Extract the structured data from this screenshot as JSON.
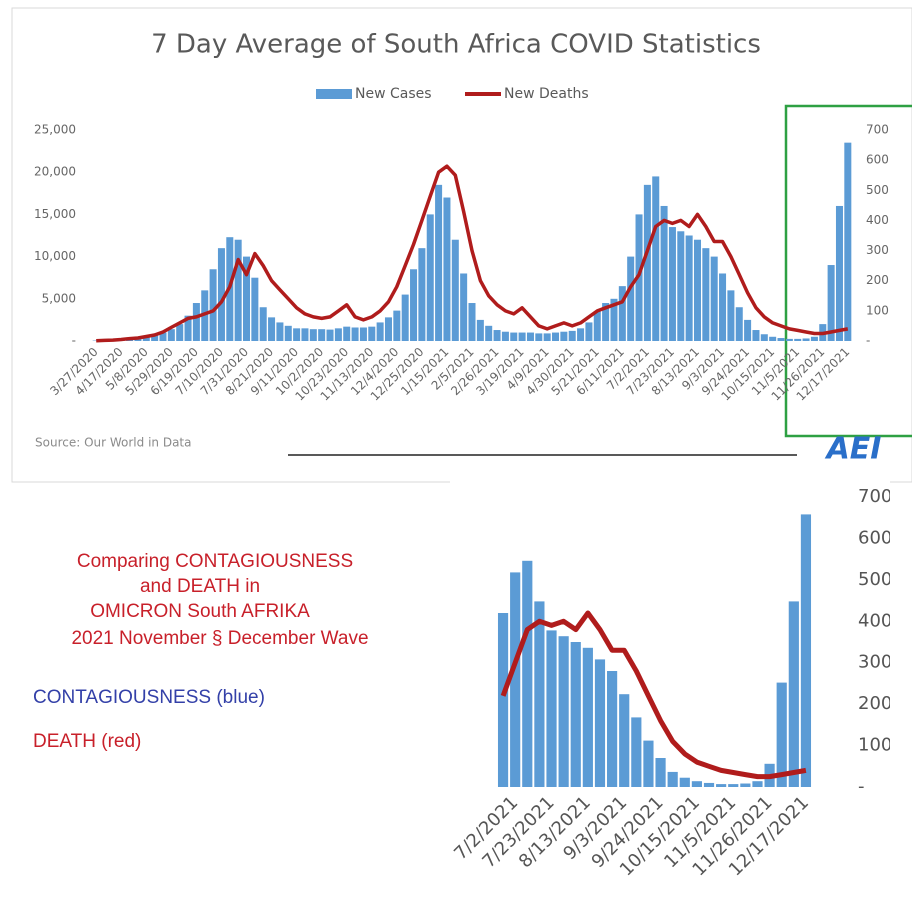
{
  "chart_data": [
    {
      "type": "bar",
      "title": "7 Day Average of South Africa COVID Statistics",
      "source": "Source: Our World in Data",
      "logo": "AEI",
      "categories": [
        "3/27/2020",
        null,
        null,
        "4/17/2020",
        null,
        null,
        "5/8/2020",
        null,
        null,
        "5/29/2020",
        null,
        null,
        "6/19/2020",
        null,
        null,
        "7/10/2020",
        null,
        null,
        "7/31/2020",
        null,
        null,
        "8/21/2020",
        null,
        null,
        "9/11/2020",
        null,
        null,
        "10/2/2020",
        null,
        null,
        "10/23/2020",
        null,
        null,
        "11/13/2020",
        null,
        null,
        "12/4/2020",
        null,
        null,
        "12/25/2020",
        null,
        null,
        "1/15/2021",
        null,
        null,
        "2/5/2021",
        null,
        null,
        "2/26/2021",
        null,
        null,
        "3/19/2021",
        null,
        null,
        "4/9/2021",
        null,
        null,
        "4/30/2021",
        null,
        null,
        "5/21/2021",
        null,
        null,
        "6/11/2021",
        null,
        null,
        "7/2/2021",
        null,
        null,
        "7/23/2021",
        null,
        null,
        "8/13/2021",
        null,
        null,
        "9/3/2021",
        null,
        null,
        "9/24/2021",
        null,
        null,
        "10/15/2021",
        null,
        null,
        "11/5/2021",
        null,
        null,
        "11/26/2021",
        null,
        null,
        "12/17/2021"
      ],
      "series": [
        {
          "name": "New Cases",
          "type": "bar",
          "color": "#5b9bd5",
          "values": [
            50,
            60,
            80,
            120,
            200,
            300,
            500,
            700,
            1000,
            1400,
            2000,
            3000,
            4500,
            6000,
            8500,
            11000,
            12300,
            12000,
            10000,
            7500,
            4000,
            2800,
            2200,
            1800,
            1500,
            1500,
            1400,
            1400,
            1350,
            1500,
            1700,
            1600,
            1600,
            1700,
            2200,
            2800,
            3600,
            5500,
            8500,
            11000,
            15000,
            18500,
            17000,
            12000,
            8000,
            4500,
            2500,
            1800,
            1300,
            1100,
            1000,
            1000,
            1000,
            900,
            900,
            1000,
            1100,
            1200,
            1500,
            2200,
            3500,
            4500,
            5000,
            6500,
            10000,
            15000,
            18500,
            19500,
            16000,
            13500,
            13000,
            12500,
            12000,
            11000,
            10000,
            8000,
            6000,
            4000,
            2500,
            1300,
            800,
            500,
            350,
            250,
            250,
            300,
            500,
            2000,
            9000,
            16000,
            23500
          ]
        },
        {
          "name": "New Deaths",
          "type": "line",
          "axis": "y2",
          "color": "#b01c1c",
          "values": [
            1,
            2,
            3,
            5,
            8,
            10,
            15,
            20,
            30,
            45,
            60,
            75,
            80,
            90,
            100,
            130,
            180,
            270,
            220,
            290,
            250,
            200,
            170,
            140,
            110,
            90,
            80,
            75,
            80,
            100,
            120,
            80,
            70,
            80,
            100,
            130,
            180,
            250,
            320,
            400,
            480,
            560,
            580,
            550,
            430,
            300,
            200,
            150,
            120,
            100,
            90,
            110,
            80,
            50,
            40,
            50,
            60,
            50,
            60,
            80,
            100,
            110,
            120,
            130,
            180,
            220,
            300,
            380,
            400,
            390,
            400,
            380,
            420,
            380,
            330,
            330,
            280,
            220,
            160,
            110,
            80,
            60,
            50,
            40,
            35,
            30,
            25,
            25,
            30,
            35,
            40
          ]
        }
      ],
      "ylim": [
        0,
        25000
      ],
      "yticks": [
        {
          "value": 25000,
          "label": "25,000"
        },
        {
          "value": 20000,
          "label": "20,000"
        },
        {
          "value": 15000,
          "label": "15,000"
        },
        {
          "value": 10000,
          "label": "10,000"
        },
        {
          "value": 5000,
          "label": "5,000"
        },
        {
          "value": 0,
          "label": "-"
        }
      ],
      "y2lim": [
        0,
        700
      ],
      "y2ticks": [
        700,
        600,
        500,
        400,
        300,
        200,
        100,
        {
          "value": 0,
          "label": "-"
        }
      ],
      "grid": false,
      "legend": "top"
    },
    {
      "type": "bar",
      "annotations": [
        "Comparing CONTAGIOUSNESS",
        "and DEATH in",
        "OMICRON South AFRIKA",
        "2021 November § December Wave",
        "CONTAGIOUSNESS (blue)",
        "DEATH (red)"
      ],
      "categories": [
        null,
        "7/2/2021",
        null,
        null,
        "7/23/2021",
        null,
        null,
        "8/13/2021",
        null,
        null,
        "9/3/2021",
        null,
        null,
        "9/24/2021",
        null,
        null,
        "10/15/2021",
        null,
        null,
        "11/5/2021",
        null,
        null,
        "11/26/2021",
        null,
        null,
        "12/17/2021"
      ],
      "series": [
        {
          "type": "bar",
          "color": "#5b9bd5",
          "values": [
            15000,
            18500,
            19500,
            16000,
            13500,
            13000,
            12500,
            12000,
            11000,
            10000,
            8000,
            6000,
            4000,
            2500,
            1300,
            800,
            500,
            350,
            250,
            250,
            300,
            500,
            2000,
            9000,
            16000,
            23500
          ]
        },
        {
          "type": "line",
          "axis": "y2",
          "color": "#b01c1c",
          "values": [
            220,
            300,
            380,
            400,
            390,
            400,
            380,
            420,
            380,
            330,
            330,
            280,
            220,
            160,
            110,
            80,
            60,
            50,
            40,
            35,
            30,
            25,
            25,
            30,
            35,
            40
          ]
        }
      ],
      "ylim": [
        0,
        25000
      ],
      "y2lim": [
        0,
        700
      ],
      "y2ticks": [
        700,
        600,
        500,
        400,
        300,
        200,
        100,
        {
          "value": 0,
          "label": "-"
        }
      ],
      "grid": false
    }
  ]
}
